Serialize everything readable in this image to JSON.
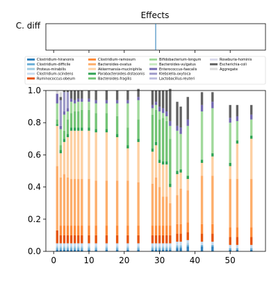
{
  "chart_data": [
    {
      "type": "heatmap",
      "title": "Effects",
      "row_labels": [
        "C. diff"
      ],
      "x_range": [
        -2.2,
        60
      ],
      "marker_x": 28.9,
      "marker_color": "#1f77b4"
    },
    {
      "type": "bar",
      "stacked": true,
      "ylim": [
        0,
        1.0
      ],
      "xlim": [
        -2.2,
        60
      ],
      "x_ticks": [
        0,
        10,
        20,
        30,
        40,
        50
      ],
      "y_ticks": [
        "0.0",
        "0.2",
        "0.4",
        "0.6",
        "0.8",
        "1.0"
      ],
      "legend_placement": "top, 4 columns",
      "series": [
        {
          "name": "Clostridium-hiranonis",
          "color": "#3182bd"
        },
        {
          "name": "Clostridium-difficile",
          "color": "#6baed6"
        },
        {
          "name": "Proteus-mirabilis",
          "color": "#9ecae1"
        },
        {
          "name": "Clostridium-scindens",
          "color": "#c6dbef"
        },
        {
          "name": "Ruminococcus-obeum",
          "color": "#e6550d"
        },
        {
          "name": "Clostridium-ramosum",
          "color": "#fd8d3c"
        },
        {
          "name": "Bacteroides-ovatus",
          "color": "#fdae6b"
        },
        {
          "name": "Akkermansia-muciniphila",
          "color": "#fdd0a2"
        },
        {
          "name": "Parabacteroides-distasonis",
          "color": "#31a354"
        },
        {
          "name": "Bacteroides-fragilis",
          "color": "#74c476"
        },
        {
          "name": "Bifidobacterium-longum",
          "color": "#a1d99b"
        },
        {
          "name": "Bacteroides-vulgatus",
          "color": "#c7e9c0"
        },
        {
          "name": "Enterococcus-faecalis",
          "color": "#756bb1"
        },
        {
          "name": "Klebsiella-oxytoca",
          "color": "#9e9ac8"
        },
        {
          "name": "Lactobacillus-reuteri",
          "color": "#bcbddc"
        },
        {
          "name": "Roseburia-hominis",
          "color": "#dadaeb"
        },
        {
          "name": "Escherichia-coli",
          "color": "#636363"
        },
        {
          "name": "Aggregate",
          "color": "#d9d9d9"
        }
      ],
      "x": [
        1,
        2,
        3,
        4,
        5,
        6,
        7,
        8,
        10,
        12,
        15,
        18,
        21,
        24,
        28,
        29,
        30,
        31,
        32,
        33,
        35,
        36,
        38,
        42,
        45,
        50,
        52,
        56
      ],
      "stacks": [
        [
          0.01,
          0.01,
          0.01,
          0.02,
          0.08,
          0.0,
          0.4,
          0.25,
          0.01,
          0.03,
          0.1,
          0.0,
          0.06,
          0.0,
          0.0,
          0.0,
          0.0,
          0.02
        ],
        [
          0.01,
          0.01,
          0.01,
          0.02,
          0.05,
          0.06,
          0.3,
          0.15,
          0.02,
          0.03,
          0.1,
          0.0,
          0.02,
          0.16,
          0.0,
          0.0,
          0.02,
          0.03
        ],
        [
          0.01,
          0.01,
          0.01,
          0.02,
          0.05,
          0.06,
          0.32,
          0.2,
          0.02,
          0.05,
          0.1,
          0.0,
          0.02,
          0.12,
          0.0,
          0.0,
          0.01,
          0.0
        ],
        [
          0.01,
          0.01,
          0.01,
          0.02,
          0.05,
          0.06,
          0.3,
          0.25,
          0.02,
          0.09,
          0.05,
          0.0,
          0.02,
          0.1,
          0.0,
          0.0,
          0.01,
          0.0
        ],
        [
          0.01,
          0.01,
          0.01,
          0.02,
          0.05,
          0.06,
          0.29,
          0.3,
          0.02,
          0.09,
          0.07,
          0.0,
          0.02,
          0.0,
          0.0,
          0.0,
          0.05,
          0.0
        ],
        [
          0.01,
          0.01,
          0.01,
          0.02,
          0.05,
          0.06,
          0.29,
          0.3,
          0.02,
          0.1,
          0.05,
          0.0,
          0.02,
          0.0,
          0.0,
          0.0,
          0.06,
          0.0
        ],
        [
          0.01,
          0.01,
          0.01,
          0.02,
          0.05,
          0.06,
          0.29,
          0.3,
          0.02,
          0.1,
          0.06,
          0.0,
          0.02,
          0.0,
          0.0,
          0.0,
          0.05,
          0.0
        ],
        [
          0.01,
          0.01,
          0.01,
          0.02,
          0.05,
          0.06,
          0.29,
          0.3,
          0.02,
          0.11,
          0.05,
          0.0,
          0.02,
          0.0,
          0.0,
          0.0,
          0.05,
          0.0
        ],
        [
          0.01,
          0.01,
          0.01,
          0.02,
          0.05,
          0.06,
          0.29,
          0.3,
          0.02,
          0.11,
          0.05,
          0.0,
          0.02,
          0.0,
          0.0,
          0.0,
          0.05,
          0.0
        ],
        [
          0.01,
          0.01,
          0.01,
          0.02,
          0.05,
          0.06,
          0.28,
          0.3,
          0.02,
          0.1,
          0.06,
          0.0,
          0.02,
          0.0,
          0.0,
          0.0,
          0.06,
          0.0
        ],
        [
          0.01,
          0.01,
          0.01,
          0.02,
          0.05,
          0.06,
          0.28,
          0.3,
          0.02,
          0.1,
          0.06,
          0.0,
          0.02,
          0.0,
          0.0,
          0.0,
          0.06,
          0.0
        ],
        [
          0.01,
          0.01,
          0.01,
          0.02,
          0.05,
          0.06,
          0.28,
          0.27,
          0.02,
          0.11,
          0.08,
          0.0,
          0.02,
          0.0,
          0.0,
          0.0,
          0.06,
          0.0
        ],
        [
          0.01,
          0.01,
          0.01,
          0.02,
          0.05,
          0.06,
          0.28,
          0.2,
          0.02,
          0.11,
          0.15,
          0.0,
          0.02,
          0.0,
          0.0,
          0.0,
          0.06,
          0.0
        ],
        [
          0.01,
          0.01,
          0.01,
          0.02,
          0.05,
          0.06,
          0.27,
          0.25,
          0.02,
          0.12,
          0.12,
          0.0,
          0.02,
          0.0,
          0.0,
          0.0,
          0.05,
          0.0
        ],
        [
          0.01,
          0.01,
          0.01,
          0.02,
          0.05,
          0.06,
          0.26,
          0.2,
          0.02,
          0.21,
          0.04,
          0.0,
          0.02,
          0.0,
          0.0,
          0.0,
          0.09,
          0.0
        ],
        [
          0.01,
          0.01,
          0.01,
          0.02,
          0.05,
          0.06,
          0.3,
          0.2,
          0.02,
          0.2,
          0.03,
          0.0,
          0.02,
          0.0,
          0.0,
          0.0,
          0.07,
          0.0
        ],
        [
          0.01,
          0.01,
          0.01,
          0.02,
          0.05,
          0.06,
          0.24,
          0.15,
          0.02,
          0.25,
          0.05,
          0.0,
          0.03,
          0.0,
          0.0,
          0.0,
          0.1,
          0.0
        ],
        [
          0.01,
          0.01,
          0.01,
          0.02,
          0.05,
          0.06,
          0.18,
          0.2,
          0.02,
          0.27,
          0.03,
          0.0,
          0.03,
          0.0,
          0.0,
          0.0,
          0.11,
          0.0
        ],
        [
          0.01,
          0.01,
          0.01,
          0.02,
          0.05,
          0.06,
          0.18,
          0.2,
          0.02,
          0.25,
          0.03,
          0.0,
          0.03,
          0.0,
          0.0,
          0.0,
          0.13,
          0.0
        ],
        [
          0.01,
          0.01,
          0.01,
          0.02,
          0.05,
          0.06,
          0.14,
          0.1,
          0.02,
          0.28,
          0.08,
          0.0,
          0.03,
          0.0,
          0.0,
          0.0,
          0.2,
          0.0
        ],
        [
          0.02,
          0.01,
          0.01,
          0.02,
          0.05,
          0.06,
          0.18,
          0.13,
          0.02,
          0.0,
          0.25,
          0.0,
          0.03,
          0.0,
          0.0,
          0.0,
          0.15,
          0.0
        ],
        [
          0.02,
          0.01,
          0.01,
          0.02,
          0.05,
          0.06,
          0.22,
          0.1,
          0.02,
          0.0,
          0.22,
          0.0,
          0.04,
          0.0,
          0.0,
          0.0,
          0.13,
          0.0
        ],
        [
          0.03,
          0.01,
          0.01,
          0.02,
          0.05,
          0.06,
          0.2,
          0.07,
          0.02,
          0.0,
          0.31,
          0.0,
          0.04,
          0.0,
          0.0,
          0.0,
          0.14,
          0.0
        ],
        [
          0.03,
          0.01,
          0.0,
          0.02,
          0.05,
          0.06,
          0.3,
          0.08,
          0.02,
          0.0,
          0.3,
          0.0,
          0.04,
          0.0,
          0.0,
          0.0,
          0.08,
          0.0
        ],
        [
          0.03,
          0.01,
          0.0,
          0.02,
          0.05,
          0.06,
          0.3,
          0.12,
          0.02,
          0.0,
          0.28,
          0.0,
          0.04,
          0.0,
          0.0,
          0.0,
          0.06,
          0.0
        ],
        [
          0.01,
          0.01,
          0.0,
          0.02,
          0.05,
          0.06,
          0.3,
          0.08,
          0.02,
          0.0,
          0.25,
          0.0,
          0.03,
          0.0,
          0.0,
          0.0,
          0.08,
          0.0
        ],
        [
          0.01,
          0.01,
          0.0,
          0.02,
          0.05,
          0.06,
          0.3,
          0.22,
          0.02,
          0.0,
          0.12,
          0.0,
          0.03,
          0.0,
          0.0,
          0.0,
          0.07,
          0.0
        ],
        [
          0.01,
          0.01,
          0.0,
          0.02,
          0.05,
          0.06,
          0.3,
          0.25,
          0.02,
          0.0,
          0.1,
          0.0,
          0.03,
          0.0,
          0.0,
          0.0,
          0.06,
          0.0
        ]
      ]
    }
  ]
}
